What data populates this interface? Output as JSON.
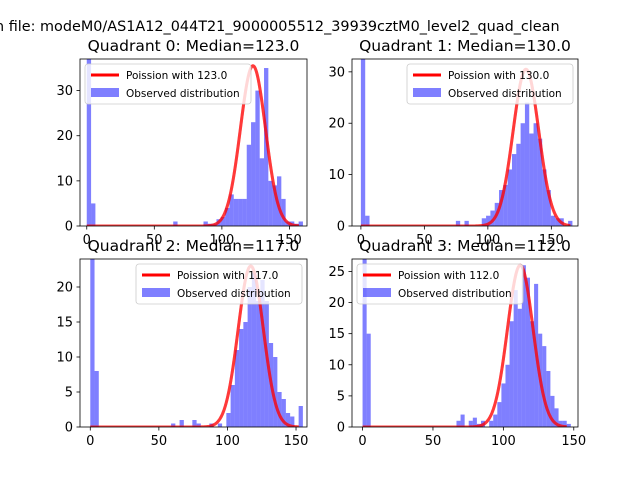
{
  "figure": {
    "suptitle": "n file: modeM0/AS1A12_044T21_9000005512_39939cztM0_level2_quad_clean"
  },
  "colors": {
    "poisson": "#ff0000",
    "histogram": "#0000ff",
    "axis": "#000000"
  },
  "chart_data": [
    {
      "type": "bar",
      "title": "Quadrant 0: Median=123.0",
      "legend": [
        "Poission with 123.0",
        "Observed distribution"
      ],
      "legend_position": "top-left",
      "xlim": [
        -5,
        163
      ],
      "ylim": [
        0,
        37
      ],
      "xticks": [
        0,
        50,
        100,
        150
      ],
      "yticks": [
        0,
        10,
        20,
        30
      ],
      "bin_width": 3.2,
      "hist": [
        [
          0,
          37
        ],
        [
          3.2,
          5
        ],
        [
          64,
          1
        ],
        [
          86.4,
          1
        ],
        [
          89.6,
          0.5
        ],
        [
          92.8,
          0.5
        ],
        [
          96,
          1.5
        ],
        [
          99.2,
          2
        ],
        [
          102.4,
          4
        ],
        [
          105.6,
          7
        ],
        [
          108.8,
          6
        ],
        [
          112,
          6
        ],
        [
          115.2,
          6
        ],
        [
          118.4,
          18
        ],
        [
          121.6,
          23
        ],
        [
          124.8,
          30
        ],
        [
          128,
          15
        ],
        [
          131.2,
          35
        ],
        [
          134.4,
          10
        ],
        [
          137.6,
          9
        ],
        [
          140.8,
          11
        ],
        [
          144,
          6
        ],
        [
          147.2,
          1
        ],
        [
          150.4,
          1
        ],
        [
          153.6,
          0.5
        ],
        [
          156.8,
          1
        ]
      ],
      "poisson_peak": 35.5,
      "poisson_mean": 123.0,
      "poisson_sigma": 9.3,
      "poisson_range": [
        0,
        157
      ]
    },
    {
      "type": "bar",
      "title": "Quadrant 1: Median=130.0",
      "legend": [
        "Poission with 130.0",
        "Observed distribution"
      ],
      "legend_position": "top-right",
      "xlim": [
        -7,
        171
      ],
      "ylim": [
        0,
        32.5
      ],
      "xticks": [
        0,
        50,
        100,
        150
      ],
      "yticks": [
        0,
        10,
        20,
        30
      ],
      "bin_width": 3.4,
      "hist": [
        [
          0,
          32.5
        ],
        [
          3.4,
          2
        ],
        [
          74.8,
          1
        ],
        [
          81.6,
          1
        ],
        [
          95.2,
          1.5
        ],
        [
          98.6,
          2
        ],
        [
          102,
          3
        ],
        [
          105.4,
          4.5
        ],
        [
          108.8,
          7
        ],
        [
          112.2,
          8
        ],
        [
          115.6,
          11
        ],
        [
          119,
          14
        ],
        [
          122.4,
          16
        ],
        [
          125.8,
          20
        ],
        [
          129.2,
          24
        ],
        [
          132.6,
          18
        ],
        [
          136,
          20
        ],
        [
          139.4,
          17
        ],
        [
          142.8,
          11
        ],
        [
          146.2,
          7
        ],
        [
          149.6,
          2
        ],
        [
          153,
          1.5
        ],
        [
          156.4,
          1.5
        ],
        [
          163.2,
          1
        ]
      ],
      "poisson_peak": 30.5,
      "poisson_mean": 130.0,
      "poisson_sigma": 10.1,
      "poisson_range": [
        0,
        165
      ]
    },
    {
      "type": "bar",
      "title": "Quadrant 2: Median=117.0",
      "legend": [
        "Poission with 117.0",
        "Observed distribution"
      ],
      "legend_position": "top-right",
      "xlim": [
        -7.5,
        158
      ],
      "ylim": [
        0,
        24
      ],
      "xticks": [
        0,
        50,
        100,
        150
      ],
      "yticks": [
        0,
        5,
        10,
        15,
        20
      ],
      "bin_width": 3.1,
      "hist": [
        [
          0,
          24
        ],
        [
          3.1,
          8
        ],
        [
          58.9,
          0.5
        ],
        [
          65.1,
          1
        ],
        [
          74.4,
          1
        ],
        [
          77.5,
          0.5
        ],
        [
          86.8,
          0.5
        ],
        [
          93,
          0.5
        ],
        [
          99.2,
          2
        ],
        [
          102.3,
          6
        ],
        [
          105.4,
          11
        ],
        [
          108.5,
          14
        ],
        [
          111.6,
          15
        ],
        [
          114.7,
          20
        ],
        [
          117.8,
          22
        ],
        [
          120.9,
          18
        ],
        [
          124,
          21
        ],
        [
          127.1,
          18
        ],
        [
          130.2,
          12
        ],
        [
          133.3,
          10
        ],
        [
          136.4,
          5
        ],
        [
          139.5,
          4
        ],
        [
          142.6,
          2
        ],
        [
          145.7,
          1.5
        ],
        [
          151.9,
          3
        ]
      ],
      "poisson_peak": 23.0,
      "poisson_mean": 117.0,
      "poisson_sigma": 9.2,
      "poisson_range": [
        0,
        152
      ]
    },
    {
      "type": "bar",
      "title": "Quadrant 3: Median=112.0",
      "legend": [
        "Poission with 112.0",
        "Observed distribution"
      ],
      "legend_position": "top-left",
      "xlim": [
        -7.5,
        153
      ],
      "ylim": [
        0,
        27
      ],
      "xticks": [
        0,
        50,
        100,
        150
      ],
      "yticks": [
        0,
        5,
        10,
        15,
        20,
        25
      ],
      "bin_width": 2.9,
      "hist": [
        [
          0,
          27
        ],
        [
          2.9,
          15
        ],
        [
          66.7,
          1
        ],
        [
          69.6,
          2
        ],
        [
          75.4,
          1
        ],
        [
          78.3,
          1.5
        ],
        [
          81.2,
          0.5
        ],
        [
          84.1,
          1
        ],
        [
          89.9,
          1
        ],
        [
          92.8,
          2
        ],
        [
          95.7,
          4
        ],
        [
          98.6,
          7
        ],
        [
          101.5,
          10
        ],
        [
          104.4,
          17
        ],
        [
          107.3,
          22
        ],
        [
          110.2,
          19
        ],
        [
          113.1,
          26
        ],
        [
          116,
          24
        ],
        [
          118.9,
          17
        ],
        [
          121.8,
          23
        ],
        [
          124.7,
          15
        ],
        [
          127.6,
          13
        ],
        [
          130.5,
          9
        ],
        [
          133.4,
          5
        ],
        [
          136.3,
          3
        ],
        [
          139.2,
          1
        ],
        [
          142.1,
          1
        ],
        [
          145,
          0.5
        ]
      ],
      "poisson_peak": 26.0,
      "poisson_mean": 112.0,
      "poisson_sigma": 9.1,
      "poisson_range": [
        0,
        145
      ]
    }
  ]
}
